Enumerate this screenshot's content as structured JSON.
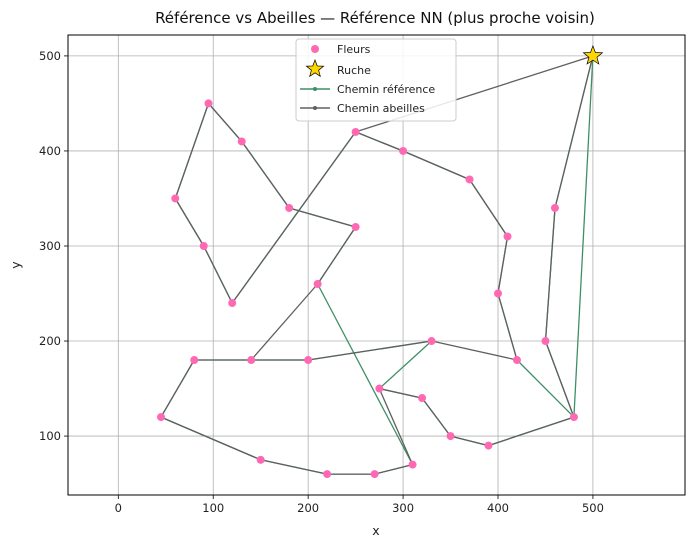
{
  "chart_data": {
    "type": "scatter",
    "title": "Référence vs Abeilles — Référence NN (plus proche voisin)",
    "xlabel": "x",
    "ylabel": "y",
    "xlim": [
      -53,
      597
    ],
    "ylim": [
      38,
      522
    ],
    "xticks": [
      0,
      100,
      200,
      300,
      400,
      500
    ],
    "yticks": [
      100,
      200,
      300,
      400,
      500
    ],
    "grid": true,
    "legend_position": "top-center",
    "flowers": {
      "name": "Fleurs",
      "color": "#ff69b4",
      "points": [
        [
          95,
          450
        ],
        [
          130,
          410
        ],
        [
          60,
          350
        ],
        [
          90,
          300
        ],
        [
          120,
          240
        ],
        [
          180,
          340
        ],
        [
          250,
          320
        ],
        [
          210,
          260
        ],
        [
          250,
          420
        ],
        [
          300,
          400
        ],
        [
          370,
          370
        ],
        [
          410,
          310
        ],
        [
          460,
          340
        ],
        [
          400,
          250
        ],
        [
          450,
          200
        ],
        [
          420,
          180
        ],
        [
          480,
          120
        ],
        [
          390,
          90
        ],
        [
          350,
          100
        ],
        [
          320,
          140
        ],
        [
          275,
          150
        ],
        [
          330,
          200
        ],
        [
          200,
          180
        ],
        [
          140,
          180
        ],
        [
          80,
          180
        ],
        [
          45,
          120
        ],
        [
          150,
          75
        ],
        [
          220,
          60
        ],
        [
          270,
          60
        ],
        [
          310,
          70
        ]
      ]
    },
    "hive": {
      "name": "Ruche",
      "color": "#ffd700",
      "point": [
        500,
        500
      ]
    },
    "series": [
      {
        "name": "Chemin référence",
        "color": "#3f8f66",
        "points": [
          [
            500,
            500
          ],
          [
            460,
            340
          ],
          [
            450,
            200
          ],
          [
            480,
            120
          ],
          [
            390,
            90
          ],
          [
            350,
            100
          ],
          [
            320,
            140
          ],
          [
            275,
            150
          ],
          [
            330,
            200
          ],
          [
            200,
            180
          ],
          [
            140,
            180
          ],
          [
            80,
            180
          ],
          [
            45,
            120
          ],
          [
            150,
            75
          ],
          [
            220,
            60
          ],
          [
            270,
            60
          ],
          [
            310,
            70
          ],
          [
            210,
            260
          ],
          [
            250,
            320
          ],
          [
            180,
            340
          ],
          [
            130,
            410
          ],
          [
            95,
            450
          ],
          [
            60,
            350
          ],
          [
            90,
            300
          ],
          [
            120,
            240
          ],
          [
            250,
            420
          ],
          [
            300,
            400
          ],
          [
            370,
            370
          ],
          [
            410,
            310
          ],
          [
            400,
            250
          ],
          [
            420,
            180
          ],
          [
            480,
            120
          ],
          [
            500,
            500
          ]
        ]
      },
      {
        "name": "Chemin abeilles",
        "color": "#606060",
        "points": [
          [
            500,
            500
          ],
          [
            250,
            420
          ],
          [
            300,
            400
          ],
          [
            370,
            370
          ],
          [
            410,
            310
          ],
          [
            400,
            250
          ],
          [
            420,
            180
          ],
          [
            330,
            200
          ],
          [
            200,
            180
          ],
          [
            140,
            180
          ],
          [
            210,
            260
          ],
          [
            250,
            320
          ],
          [
            180,
            340
          ],
          [
            130,
            410
          ],
          [
            95,
            450
          ],
          [
            60,
            350
          ],
          [
            90,
            300
          ],
          [
            120,
            240
          ],
          [
            250,
            420
          ],
          [
            500,
            500
          ],
          [
            460,
            340
          ],
          [
            450,
            200
          ],
          [
            480,
            120
          ],
          [
            390,
            90
          ],
          [
            350,
            100
          ],
          [
            320,
            140
          ],
          [
            275,
            150
          ],
          [
            310,
            70
          ],
          [
            270,
            60
          ],
          [
            220,
            60
          ],
          [
            150,
            75
          ],
          [
            45,
            120
          ],
          [
            80,
            180
          ],
          [
            140,
            180
          ]
        ]
      }
    ]
  }
}
